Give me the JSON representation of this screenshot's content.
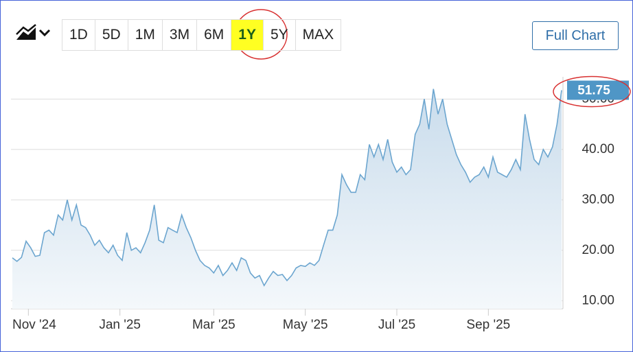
{
  "ui": {
    "ranges": [
      "1D",
      "5D",
      "1M",
      "3M",
      "6M",
      "1Y",
      "5Y",
      "MAX"
    ],
    "selected": "1Y",
    "full_chart": "Full Chart"
  },
  "chart_data": {
    "type": "area",
    "color": "#6ba5cf",
    "label_color": "#4f96c6",
    "grid": true,
    "values": [
      18.5,
      17.8,
      18.6,
      21.8,
      20.5,
      18.8,
      19.0,
      23.5,
      24.0,
      23.0,
      27.0,
      26.0,
      30.0,
      26.0,
      29.0,
      25.0,
      24.5,
      23.0,
      21.0,
      22.0,
      20.5,
      19.5,
      21.0,
      19.0,
      18.0,
      23.5,
      20.0,
      20.5,
      19.5,
      21.5,
      24.0,
      29.0,
      22.0,
      21.5,
      24.5,
      24.0,
      23.5,
      27.0,
      24.5,
      22.5,
      20.0,
      18.0,
      17.0,
      16.5,
      15.5,
      17.0,
      15.0,
      16.0,
      17.5,
      16.0,
      18.5,
      18.0,
      15.5,
      14.5,
      15.0,
      13.0,
      14.5,
      15.8,
      15.0,
      15.2,
      14.0,
      15.0,
      16.5,
      17.0,
      16.8,
      17.5,
      17.0,
      18.0,
      21.0,
      24.0,
      24.0,
      27.0,
      35.0,
      33.0,
      31.5,
      31.5,
      35.0,
      34.0,
      41.0,
      38.5,
      41.0,
      38.0,
      42.0,
      37.5,
      35.5,
      36.5,
      35.0,
      36.0,
      43.0,
      45.0,
      50.0,
      44.0,
      52.0,
      47.0,
      50.0,
      45.0,
      42.0,
      39.0,
      37.0,
      35.5,
      33.5,
      34.5,
      35.0,
      36.5,
      34.5,
      38.5,
      35.5,
      35.0,
      34.5,
      36.0,
      38.0,
      36.0,
      47.0,
      42.0,
      38.0,
      37.0,
      40.0,
      38.5,
      40.5,
      45.0,
      51.75
    ],
    "xlim": [
      0,
      120
    ],
    "xticks": [
      {
        "value": 3.5,
        "label": "Nov '24"
      },
      {
        "value": 23.5,
        "label": "Jan '25"
      },
      {
        "value": 44,
        "label": "Mar '25"
      },
      {
        "value": 64,
        "label": "May '25"
      },
      {
        "value": 84,
        "label": "Jul '25"
      },
      {
        "value": 104,
        "label": "Sep '25"
      }
    ],
    "ylim": [
      8.4,
      54.4
    ],
    "yticks": [
      {
        "value": 10,
        "label": "10.00"
      },
      {
        "value": 20,
        "label": "20.00"
      },
      {
        "value": 30,
        "label": "30.00"
      },
      {
        "value": 40,
        "label": "40.00"
      },
      {
        "value": 50,
        "label": "50.00"
      }
    ]
  }
}
